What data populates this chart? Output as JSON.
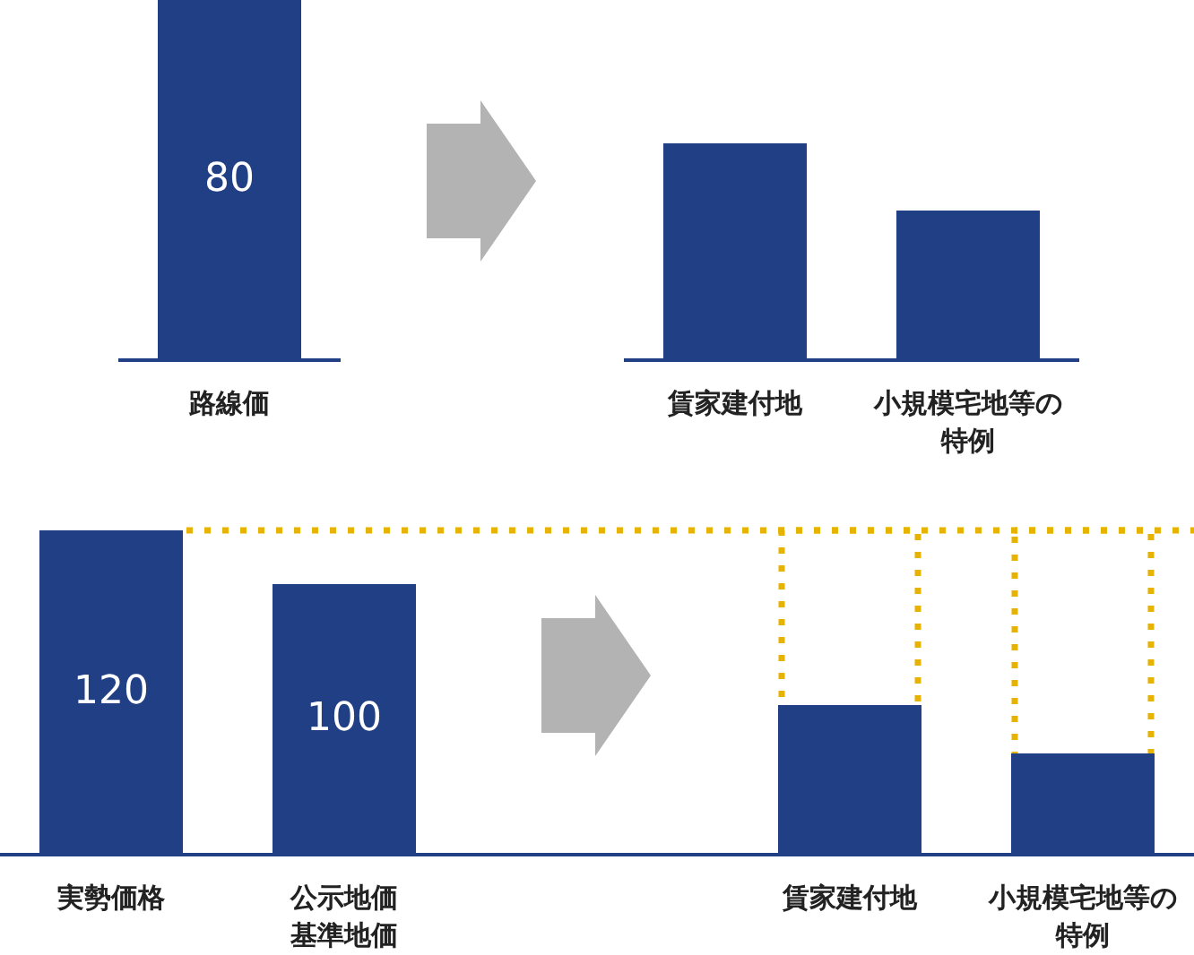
{
  "chart_data": [
    {
      "type": "bar",
      "categories": [
        "路線価",
        null,
        "賃家建付地",
        "小規模宅地等の特例"
      ],
      "values": [
        80,
        null,
        48,
        33
      ],
      "value_labels": [
        "80",
        null,
        null,
        null
      ],
      "color": "#203f85",
      "tick_labels": "x"
    },
    {
      "type": "bar",
      "stacked": true,
      "categories": [
        "実勢価格",
        "公示地価基準地価",
        null,
        "賃家建付地",
        "小規模宅地等の特例"
      ],
      "series": [
        {
          "color": "#203f85",
          "values": [
            120,
            100,
            null,
            55,
            37
          ],
          "value_labels": [
            "120",
            "100",
            null,
            null,
            null
          ]
        },
        {
          "color": "#e6b400",
          "line_style": "dotted",
          "values": [
            null,
            null,
            null,
            65,
            83
          ]
        }
      ],
      "ref_lines": [
        {
          "axis": "y",
          "value": 120,
          "color": "#e6b400",
          "line_style": "dotted"
        }
      ],
      "tick_labels": "x"
    }
  ]
}
